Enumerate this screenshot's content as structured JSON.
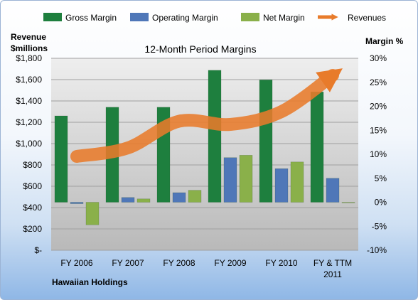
{
  "chart_data": {
    "type": "bar",
    "title": "12-Month Period Margins",
    "company": "Hawaiian Holdings",
    "categories": [
      "FY 2006",
      "FY 2007",
      "FY 2008",
      "FY 2009",
      "FY 2010",
      "FY & TTM 2011"
    ],
    "left_axis": {
      "label_line1": "Revenue",
      "label_line2": "$millions",
      "ticks": [
        "$-",
        "$200",
        "$400",
        "$600",
        "$800",
        "$1,000",
        "$1,200",
        "$1,400",
        "$1,600",
        "$1,800"
      ],
      "ylim": [
        0,
        1800
      ]
    },
    "right_axis": {
      "label": "Margin %",
      "ticks": [
        "-10%",
        "-5%",
        "0%",
        "5%",
        "10%",
        "15%",
        "20%",
        "25%",
        "30%"
      ],
      "ylim": [
        -10,
        30
      ]
    },
    "series": [
      {
        "name": "Gross Margin",
        "axis": "right",
        "color": "#1e7f3e",
        "values": [
          18,
          19.8,
          19.8,
          27.5,
          25.5,
          23
        ]
      },
      {
        "name": "Operating Margin",
        "axis": "right",
        "color": "#4f77b8",
        "values": [
          -0.3,
          1.0,
          2.0,
          9.3,
          7.0,
          5.0
        ]
      },
      {
        "name": "Net Margin",
        "axis": "right",
        "color": "#8ab04a",
        "values": [
          -4.7,
          0.7,
          2.5,
          9.8,
          8.4,
          0
        ]
      },
      {
        "name": "Revenues",
        "axis": "left",
        "color": "#e87b2b",
        "type": "line",
        "values": [
          880,
          960,
          1210,
          1180,
          1300,
          1640
        ]
      }
    ],
    "grid": true,
    "legend": "top"
  }
}
